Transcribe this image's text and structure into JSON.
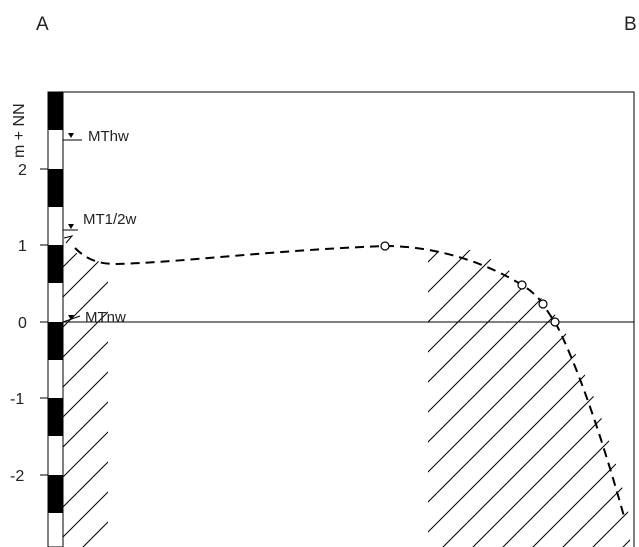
{
  "corner_labels": {
    "left": "A",
    "right": "B"
  },
  "axis": {
    "title": "m + NN",
    "ticks": [
      "2",
      "1",
      "0",
      "-1",
      "-2"
    ]
  },
  "tide_marks": [
    {
      "label": "MThw",
      "level_m": 2.4
    },
    {
      "label": "MT1/2w",
      "level_m": 1.25
    },
    {
      "label": "MTnw",
      "level_m": 0.05
    }
  ],
  "profile": {
    "line_style": "dashed",
    "measured_points": [
      "1.0",
      "0.5",
      "0.25",
      "0.0"
    ]
  },
  "colors": {
    "ink": "#000000",
    "scale_black": "#000000",
    "scale_white": "#ffffff"
  }
}
